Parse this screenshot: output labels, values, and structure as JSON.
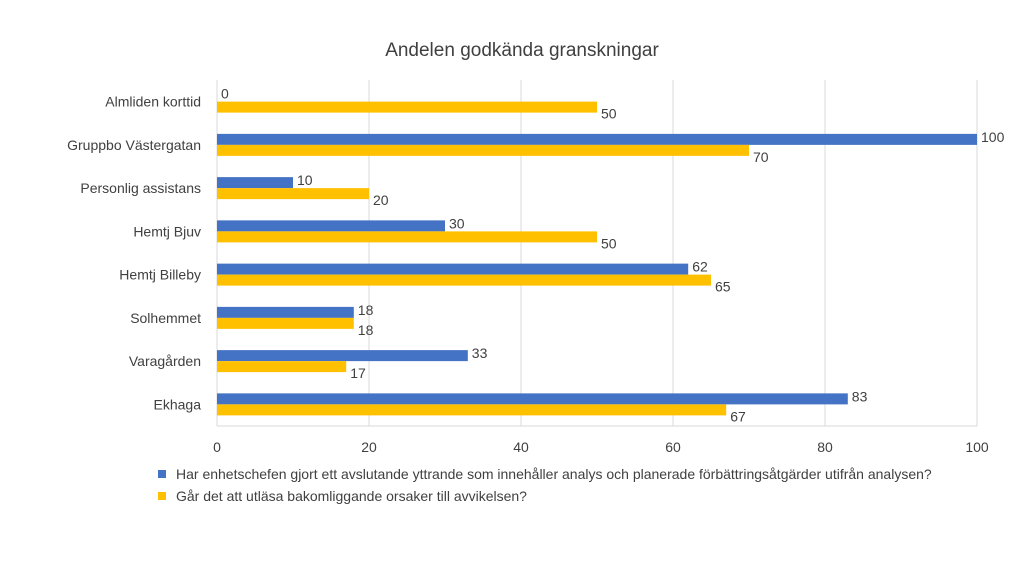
{
  "chart_data": {
    "type": "bar",
    "orientation": "horizontal",
    "title": "Andelen godkända granskningar",
    "categories": [
      "Almliden korttid",
      "Gruppbo Västergatan",
      "Personlig assistans",
      "Hemtj Bjuv",
      "Hemtj Billeby",
      "Solhemmet",
      "Varagården",
      "Ekhaga"
    ],
    "series": [
      {
        "name": "Har enhetschefen gjort ett avslutande yttrande som innehåller analys och planerade förbättringsåtgärder utifrån analysen?",
        "color": "#4472C4",
        "values": [
          0,
          100,
          10,
          30,
          62,
          18,
          33,
          83
        ]
      },
      {
        "name": "Går det att utläsa bakomliggande orsaker till avvikelsen?",
        "color": "#FFC000",
        "values": [
          50,
          70,
          20,
          50,
          65,
          18,
          17,
          67
        ]
      }
    ],
    "xlim": [
      0,
      100
    ],
    "xticks": [
      0,
      20,
      40,
      60,
      80,
      100
    ],
    "grid": true,
    "legend_position": "bottom"
  }
}
